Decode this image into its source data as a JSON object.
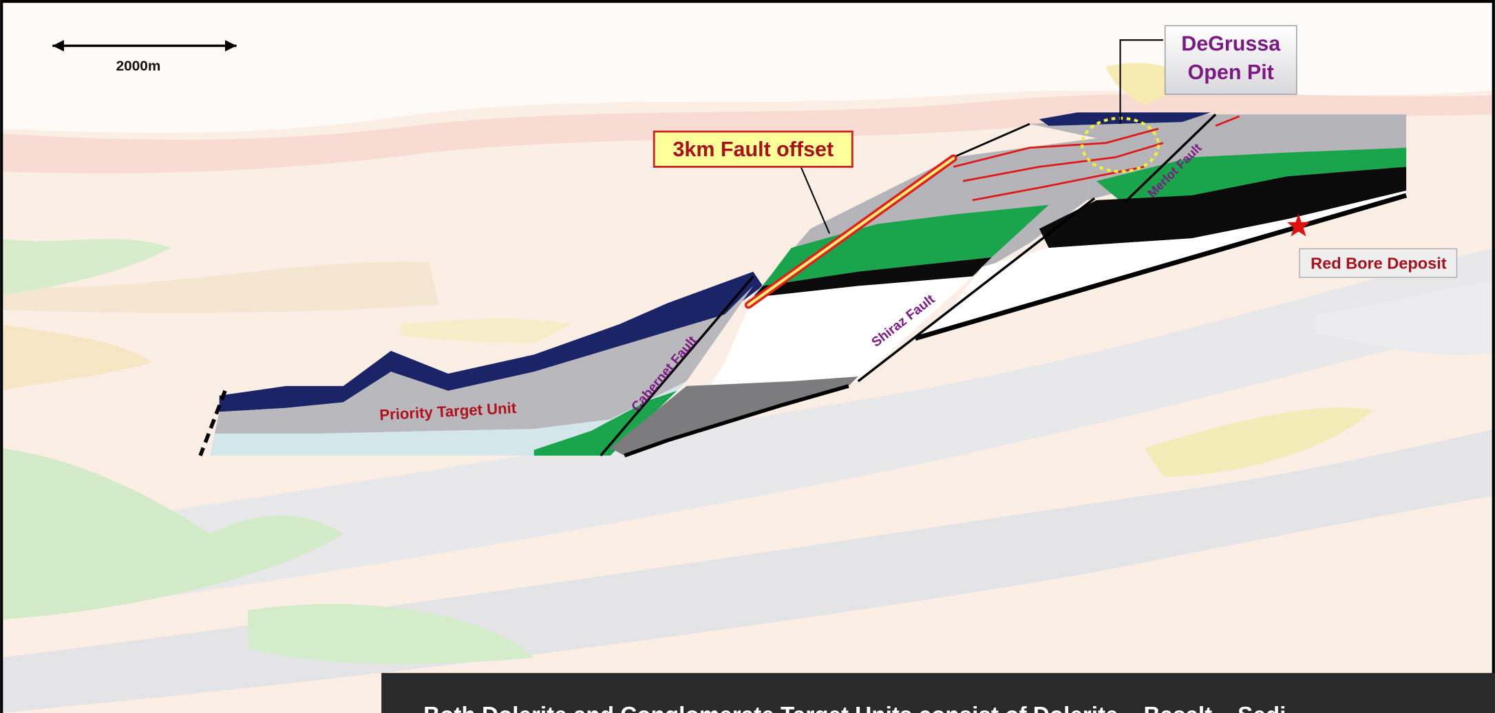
{
  "scale_bar": {
    "label": "2000m"
  },
  "callouts": {
    "degrussa": [
      "DeGrussa",
      "Open Pit"
    ],
    "fault_offset": "3km Fault offset",
    "red_bore": "Red Bore Deposit"
  },
  "labels": {
    "priority_target": "Priority Target Unit",
    "cabernet_fault": "Cabernet Fault",
    "shiraz_fault": "Shiraz Fault",
    "merlot_fault": "Merlot Fault"
  },
  "caption": "Both Dolerite and Conglomerate Target Units consist of Dolerite – Basalt – Sedi"
}
